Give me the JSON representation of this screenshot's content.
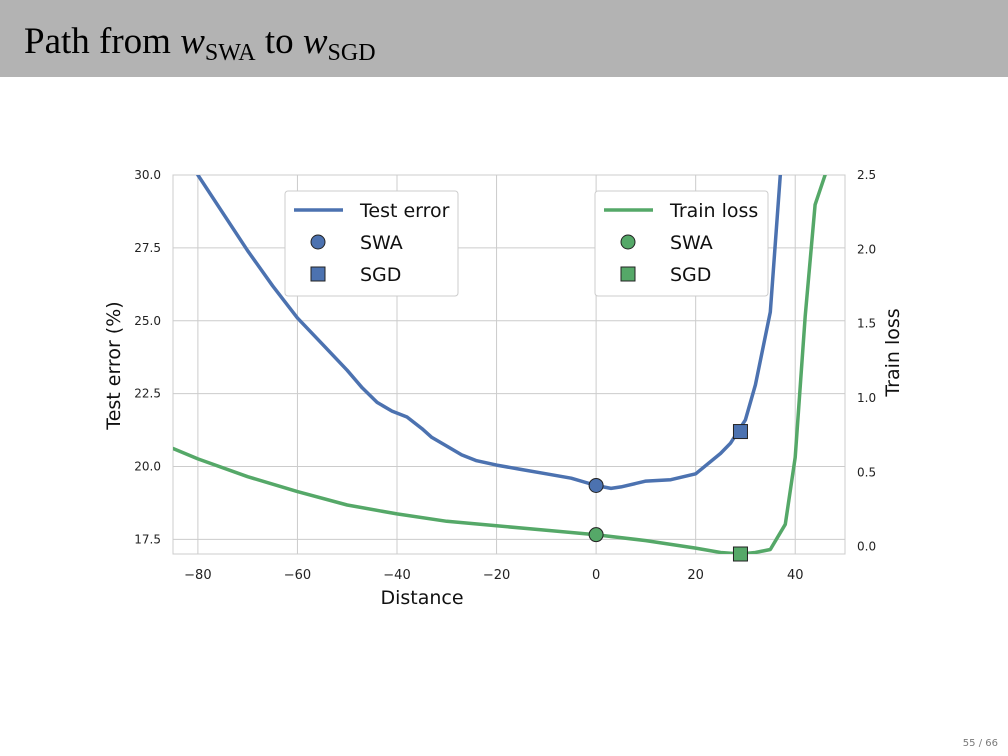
{
  "slide": {
    "title_prefix": "Path from ",
    "w1": "w",
    "w1_sub": "SWA",
    "title_middle": " to ",
    "w2": "w",
    "w2_sub": "SGD",
    "page_current": "55",
    "page_separator": " / ",
    "page_total": "66"
  },
  "colors": {
    "blue": "#4c72b0",
    "green": "#55a868",
    "title_bar": "#b3b3b3",
    "grid": "#cccccc"
  },
  "chart_data": {
    "type": "line",
    "xlabel": "Distance",
    "ylabel_left": "Test error (%)",
    "ylabel_right": "Train loss",
    "xlim": [
      -85,
      50
    ],
    "ylim_left": [
      17,
      30
    ],
    "ylim_right": [
      -0.05,
      2.5
    ],
    "x_ticks": [
      -80,
      -60,
      -40,
      -20,
      0,
      20,
      40
    ],
    "x_tick_labels": [
      "−80",
      "−60",
      "−40",
      "−20",
      "0",
      "20",
      "40"
    ],
    "y_ticks_left": [
      17.5,
      20.0,
      22.5,
      25.0,
      27.5,
      30.0
    ],
    "y_tick_labels_left": [
      "17.5",
      "20.0",
      "22.5",
      "25.0",
      "27.5",
      "30.0"
    ],
    "y_ticks_right": [
      0.0,
      0.5,
      1.0,
      1.5,
      2.0,
      2.5
    ],
    "y_tick_labels_right": [
      "0.0",
      "0.5",
      "1.0",
      "1.5",
      "2.0",
      "2.5"
    ],
    "grid": true,
    "series": [
      {
        "name": "Test error",
        "axis": "left",
        "color": "#4c72b0",
        "x": [
          -80,
          -75,
          -70,
          -65,
          -60,
          -55,
          -50,
          -47,
          -44,
          -41,
          -38,
          -35,
          -33,
          -30,
          -27,
          -24,
          -20,
          -15,
          -10,
          -5,
          0,
          3,
          5,
          10,
          15,
          20,
          25,
          27,
          30,
          32,
          35,
          37
        ],
        "y": [
          30.0,
          28.7,
          27.4,
          26.2,
          25.1,
          24.2,
          23.3,
          22.7,
          22.2,
          21.9,
          21.7,
          21.3,
          21.0,
          20.7,
          20.4,
          20.2,
          20.05,
          19.9,
          19.75,
          19.6,
          19.35,
          19.25,
          19.3,
          19.5,
          19.55,
          19.75,
          20.45,
          20.8,
          21.6,
          22.8,
          25.3,
          30.0
        ]
      },
      {
        "name": "Train loss",
        "axis": "right",
        "color": "#55a868",
        "x": [
          -85,
          -80,
          -70,
          -60,
          -50,
          -40,
          -30,
          -20,
          -10,
          0,
          10,
          20,
          25,
          29,
          32,
          35,
          38,
          40,
          42,
          44,
          46
        ],
        "y": [
          0.66,
          0.59,
          0.47,
          0.37,
          0.28,
          0.22,
          0.17,
          0.14,
          0.11,
          0.08,
          0.04,
          -0.01,
          -0.04,
          -0.05,
          -0.04,
          -0.02,
          0.15,
          0.6,
          1.55,
          2.3,
          2.5
        ]
      }
    ],
    "markers": [
      {
        "name": "SWA",
        "series": "Test error",
        "axis": "left",
        "shape": "circle",
        "x": 0,
        "y": 19.35
      },
      {
        "name": "SGD",
        "series": "Test error",
        "axis": "left",
        "shape": "square",
        "x": 29,
        "y": 21.2
      },
      {
        "name": "SWA",
        "series": "Train loss",
        "axis": "right",
        "shape": "circle",
        "x": 0,
        "y": 0.08
      },
      {
        "name": "SGD",
        "series": "Train loss",
        "axis": "right",
        "shape": "square",
        "x": 29,
        "y": -0.05
      }
    ],
    "legends": [
      {
        "placement": "upper-left",
        "entries": [
          {
            "label": "Test error",
            "kind": "line",
            "color": "#4c72b0"
          },
          {
            "label": "SWA",
            "kind": "circle",
            "color": "#4c72b0"
          },
          {
            "label": "SGD",
            "kind": "square",
            "color": "#4c72b0"
          }
        ]
      },
      {
        "placement": "upper-right",
        "entries": [
          {
            "label": "Train loss",
            "kind": "line",
            "color": "#55a868"
          },
          {
            "label": "SWA",
            "kind": "circle",
            "color": "#55a868"
          },
          {
            "label": "SGD",
            "kind": "square",
            "color": "#55a868"
          }
        ]
      }
    ]
  }
}
